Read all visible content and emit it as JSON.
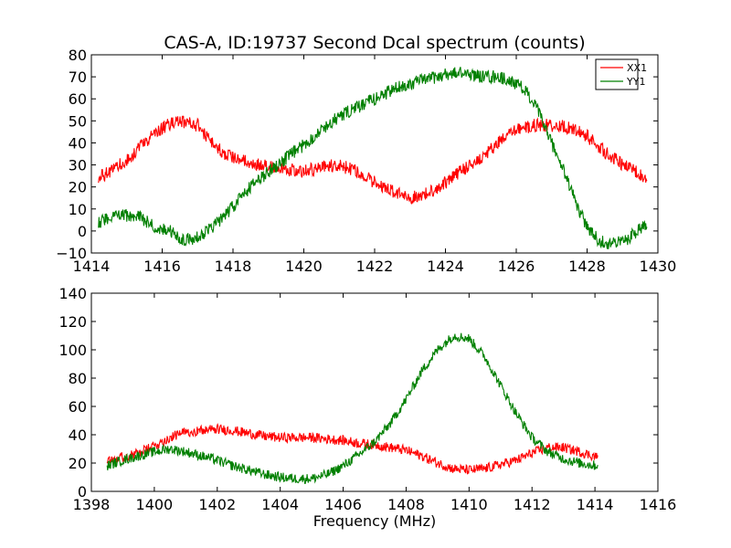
{
  "chart_data": [
    {
      "type": "line",
      "title": "CAS-A, ID:19737 Second Dcal spectrum (counts)",
      "xlabel": "",
      "ylabel": "",
      "xlim": [
        1414,
        1430
      ],
      "ylim": [
        -10,
        80
      ],
      "xticks": [
        1414,
        1416,
        1418,
        1420,
        1422,
        1424,
        1426,
        1428,
        1430
      ],
      "yticks": [
        -10,
        0,
        10,
        20,
        30,
        40,
        50,
        60,
        70,
        80
      ],
      "grid": false,
      "legend_position": "top-right",
      "noise_amplitude": 3,
      "series": [
        {
          "name": "XX1",
          "color": "#ff0000",
          "x": [
            1414.2,
            1415.0,
            1415.5,
            1416.0,
            1416.5,
            1417.0,
            1417.5,
            1418.0,
            1418.5,
            1419.0,
            1419.5,
            1420.0,
            1420.5,
            1421.0,
            1421.5,
            1422.0,
            1422.5,
            1423.0,
            1423.5,
            1424.0,
            1424.5,
            1425.0,
            1425.5,
            1426.0,
            1426.5,
            1427.0,
            1427.5,
            1428.0,
            1428.5,
            1429.0,
            1429.7
          ],
          "y": [
            24,
            32,
            40,
            47,
            50,
            48,
            38,
            33,
            31,
            29,
            28,
            27,
            29,
            30,
            27,
            22,
            18,
            15,
            17,
            22,
            28,
            33,
            40,
            46,
            48,
            48,
            47,
            43,
            36,
            30,
            24
          ]
        },
        {
          "name": "YY1",
          "color": "#008000",
          "x": [
            1414.2,
            1414.6,
            1415.0,
            1415.4,
            1415.8,
            1416.2,
            1416.6,
            1417.0,
            1417.5,
            1418.0,
            1418.5,
            1419.0,
            1419.5,
            1420.0,
            1420.5,
            1421.0,
            1421.5,
            1422.0,
            1422.5,
            1423.0,
            1423.5,
            1424.0,
            1424.5,
            1425.0,
            1425.5,
            1426.0,
            1426.3,
            1426.6,
            1427.0,
            1427.4,
            1427.7,
            1428.0,
            1428.3,
            1428.7,
            1429.1,
            1429.4,
            1429.7
          ],
          "y": [
            4,
            7,
            7,
            6,
            2,
            0,
            -4,
            -3,
            3,
            11,
            20,
            27,
            33,
            39,
            46,
            52,
            56,
            60,
            64,
            67,
            69,
            71,
            72,
            70,
            70,
            67,
            63,
            55,
            40,
            25,
            12,
            2,
            -4,
            -6,
            -4,
            0,
            4
          ]
        }
      ]
    },
    {
      "type": "line",
      "title": "",
      "xlabel": "Frequency (MHz)",
      "ylabel": "",
      "xlim": [
        1398,
        1416
      ],
      "ylim": [
        0,
        140
      ],
      "xticks": [
        1398,
        1400,
        1402,
        1404,
        1406,
        1408,
        1410,
        1412,
        1414,
        1416
      ],
      "yticks": [
        0,
        20,
        40,
        60,
        80,
        100,
        120,
        140
      ],
      "grid": false,
      "noise_amplitude": 3.5,
      "series": [
        {
          "name": "",
          "color": "#ff0000",
          "x": [
            1398.5,
            1399.0,
            1399.5,
            1400.0,
            1400.5,
            1401.0,
            1401.5,
            1402.0,
            1402.5,
            1403.0,
            1403.5,
            1404.0,
            1404.5,
            1405.0,
            1405.5,
            1406.0,
            1406.5,
            1407.0,
            1407.5,
            1408.0,
            1408.5,
            1409.0,
            1409.5,
            1410.0,
            1410.5,
            1411.0,
            1411.5,
            1412.0,
            1412.5,
            1413.0,
            1413.5,
            1414.1
          ],
          "y": [
            23,
            24,
            27,
            32,
            38,
            42,
            43,
            44,
            43,
            41,
            39,
            38,
            38,
            38,
            37,
            36,
            34,
            33,
            31,
            29,
            25,
            20,
            16,
            15,
            16,
            19,
            22,
            27,
            31,
            31,
            28,
            24
          ]
        },
        {
          "name": "",
          "color": "#008000",
          "x": [
            1398.5,
            1399.0,
            1399.5,
            1400.0,
            1400.5,
            1401.0,
            1401.5,
            1402.0,
            1402.5,
            1403.0,
            1403.5,
            1404.0,
            1404.5,
            1405.0,
            1405.5,
            1406.0,
            1406.5,
            1407.0,
            1407.5,
            1408.0,
            1408.5,
            1409.0,
            1409.5,
            1410.0,
            1410.5,
            1411.0,
            1411.5,
            1412.0,
            1412.5,
            1413.0,
            1413.5,
            1414.1
          ],
          "y": [
            18,
            22,
            25,
            28,
            30,
            28,
            25,
            22,
            18,
            15,
            12,
            10,
            9,
            9,
            12,
            18,
            26,
            35,
            48,
            65,
            85,
            100,
            110,
            108,
            95,
            75,
            55,
            38,
            28,
            23,
            20,
            18
          ]
        }
      ]
    }
  ]
}
